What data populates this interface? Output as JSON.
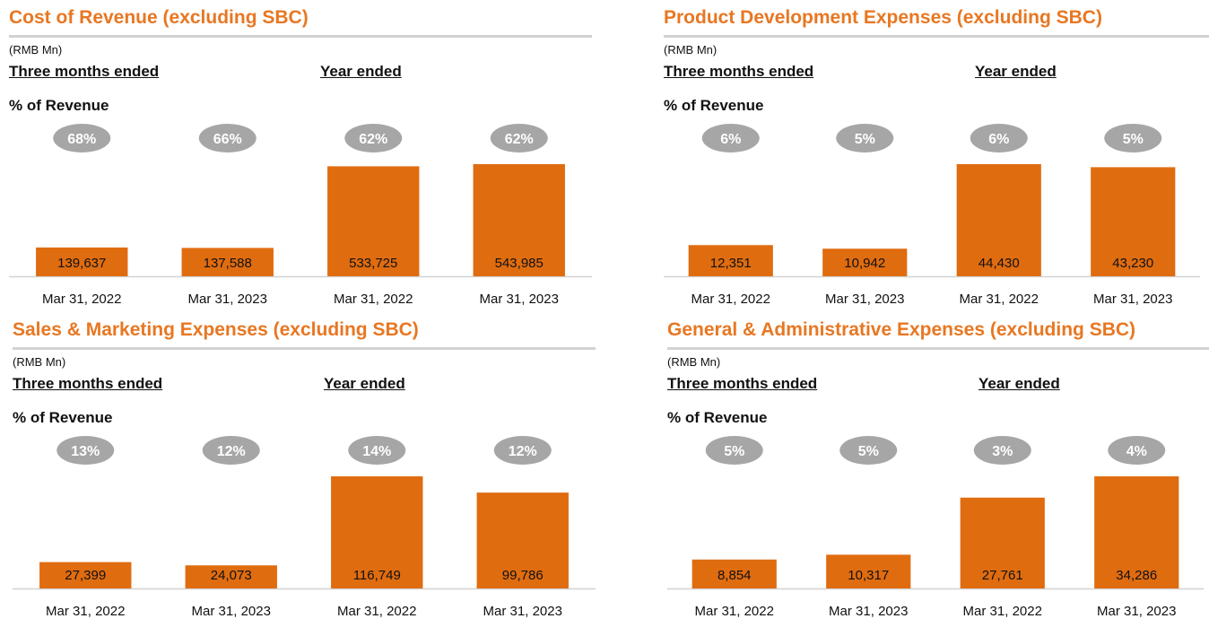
{
  "chart_data": [
    {
      "type": "bar",
      "title": "Cost of Revenue (excluding SBC)",
      "unit": "(RMB Mn)",
      "group_labels": [
        "Three months ended",
        "Year ended"
      ],
      "pct_heading": "% of Revenue",
      "categories": [
        "Mar 31, 2022",
        "Mar 31, 2023",
        "Mar 31, 2022",
        "Mar 31, 2023"
      ],
      "values": [
        139637,
        137588,
        533725,
        543985
      ],
      "value_labels": [
        "139,637",
        "137,588",
        "533,725",
        "543,985"
      ],
      "pct_labels": [
        "68%",
        "66%",
        "62%",
        "62%"
      ],
      "bar_heights": [
        0.257,
        0.253,
        0.981,
        1.0
      ]
    },
    {
      "type": "bar",
      "title": "Product Development Expenses (excluding SBC)",
      "unit": "(RMB Mn)",
      "group_labels": [
        "Three months ended",
        "Year ended"
      ],
      "pct_heading": "% of Revenue",
      "categories": [
        "Mar 31, 2022",
        "Mar 31, 2023",
        "Mar 31, 2022",
        "Mar 31, 2023"
      ],
      "values": [
        12351,
        10942,
        44430,
        43230
      ],
      "value_labels": [
        "12,351",
        "10,942",
        "44,430",
        "43,230"
      ],
      "pct_labels": [
        "6%",
        "5%",
        "6%",
        "5%"
      ],
      "bar_heights": [
        0.278,
        0.246,
        1.0,
        0.973
      ]
    },
    {
      "type": "bar",
      "title": "Sales & Marketing Expenses (excluding SBC)",
      "unit": "(RMB Mn)",
      "group_labels": [
        "Three months ended",
        "Year ended"
      ],
      "pct_heading": "% of Revenue",
      "categories": [
        "Mar 31, 2022",
        "Mar 31, 2023",
        "Mar 31, 2022",
        "Mar 31, 2023"
      ],
      "values": [
        27399,
        24073,
        116749,
        99786
      ],
      "value_labels": [
        "27,399",
        "24,073",
        "116,749",
        "99,786"
      ],
      "pct_labels": [
        "13%",
        "12%",
        "14%",
        "12%"
      ],
      "bar_heights": [
        0.235,
        0.206,
        1.0,
        0.855
      ]
    },
    {
      "type": "bar",
      "title": "General & Administrative Expenses (excluding SBC)",
      "unit": "(RMB Mn)",
      "group_labels": [
        "Three months ended",
        "Year ended"
      ],
      "pct_heading": "% of Revenue",
      "categories": [
        "Mar 31, 2022",
        "Mar 31, 2023",
        "Mar 31, 2022",
        "Mar 31, 2023"
      ],
      "values": [
        8854,
        10317,
        27761,
        34286
      ],
      "value_labels": [
        "8,854",
        "10,317",
        "27,761",
        "34,286"
      ],
      "pct_labels": [
        "5%",
        "5%",
        "3%",
        "4%"
      ],
      "bar_heights": [
        0.258,
        0.301,
        0.81,
        1.0
      ]
    }
  ],
  "colors": {
    "title": "#e87722",
    "bar": "#e06c10",
    "bubble": "#a6a6a6",
    "bubble_text": "#ffffff",
    "axis": "#d2d2d2",
    "text": "#111111"
  }
}
